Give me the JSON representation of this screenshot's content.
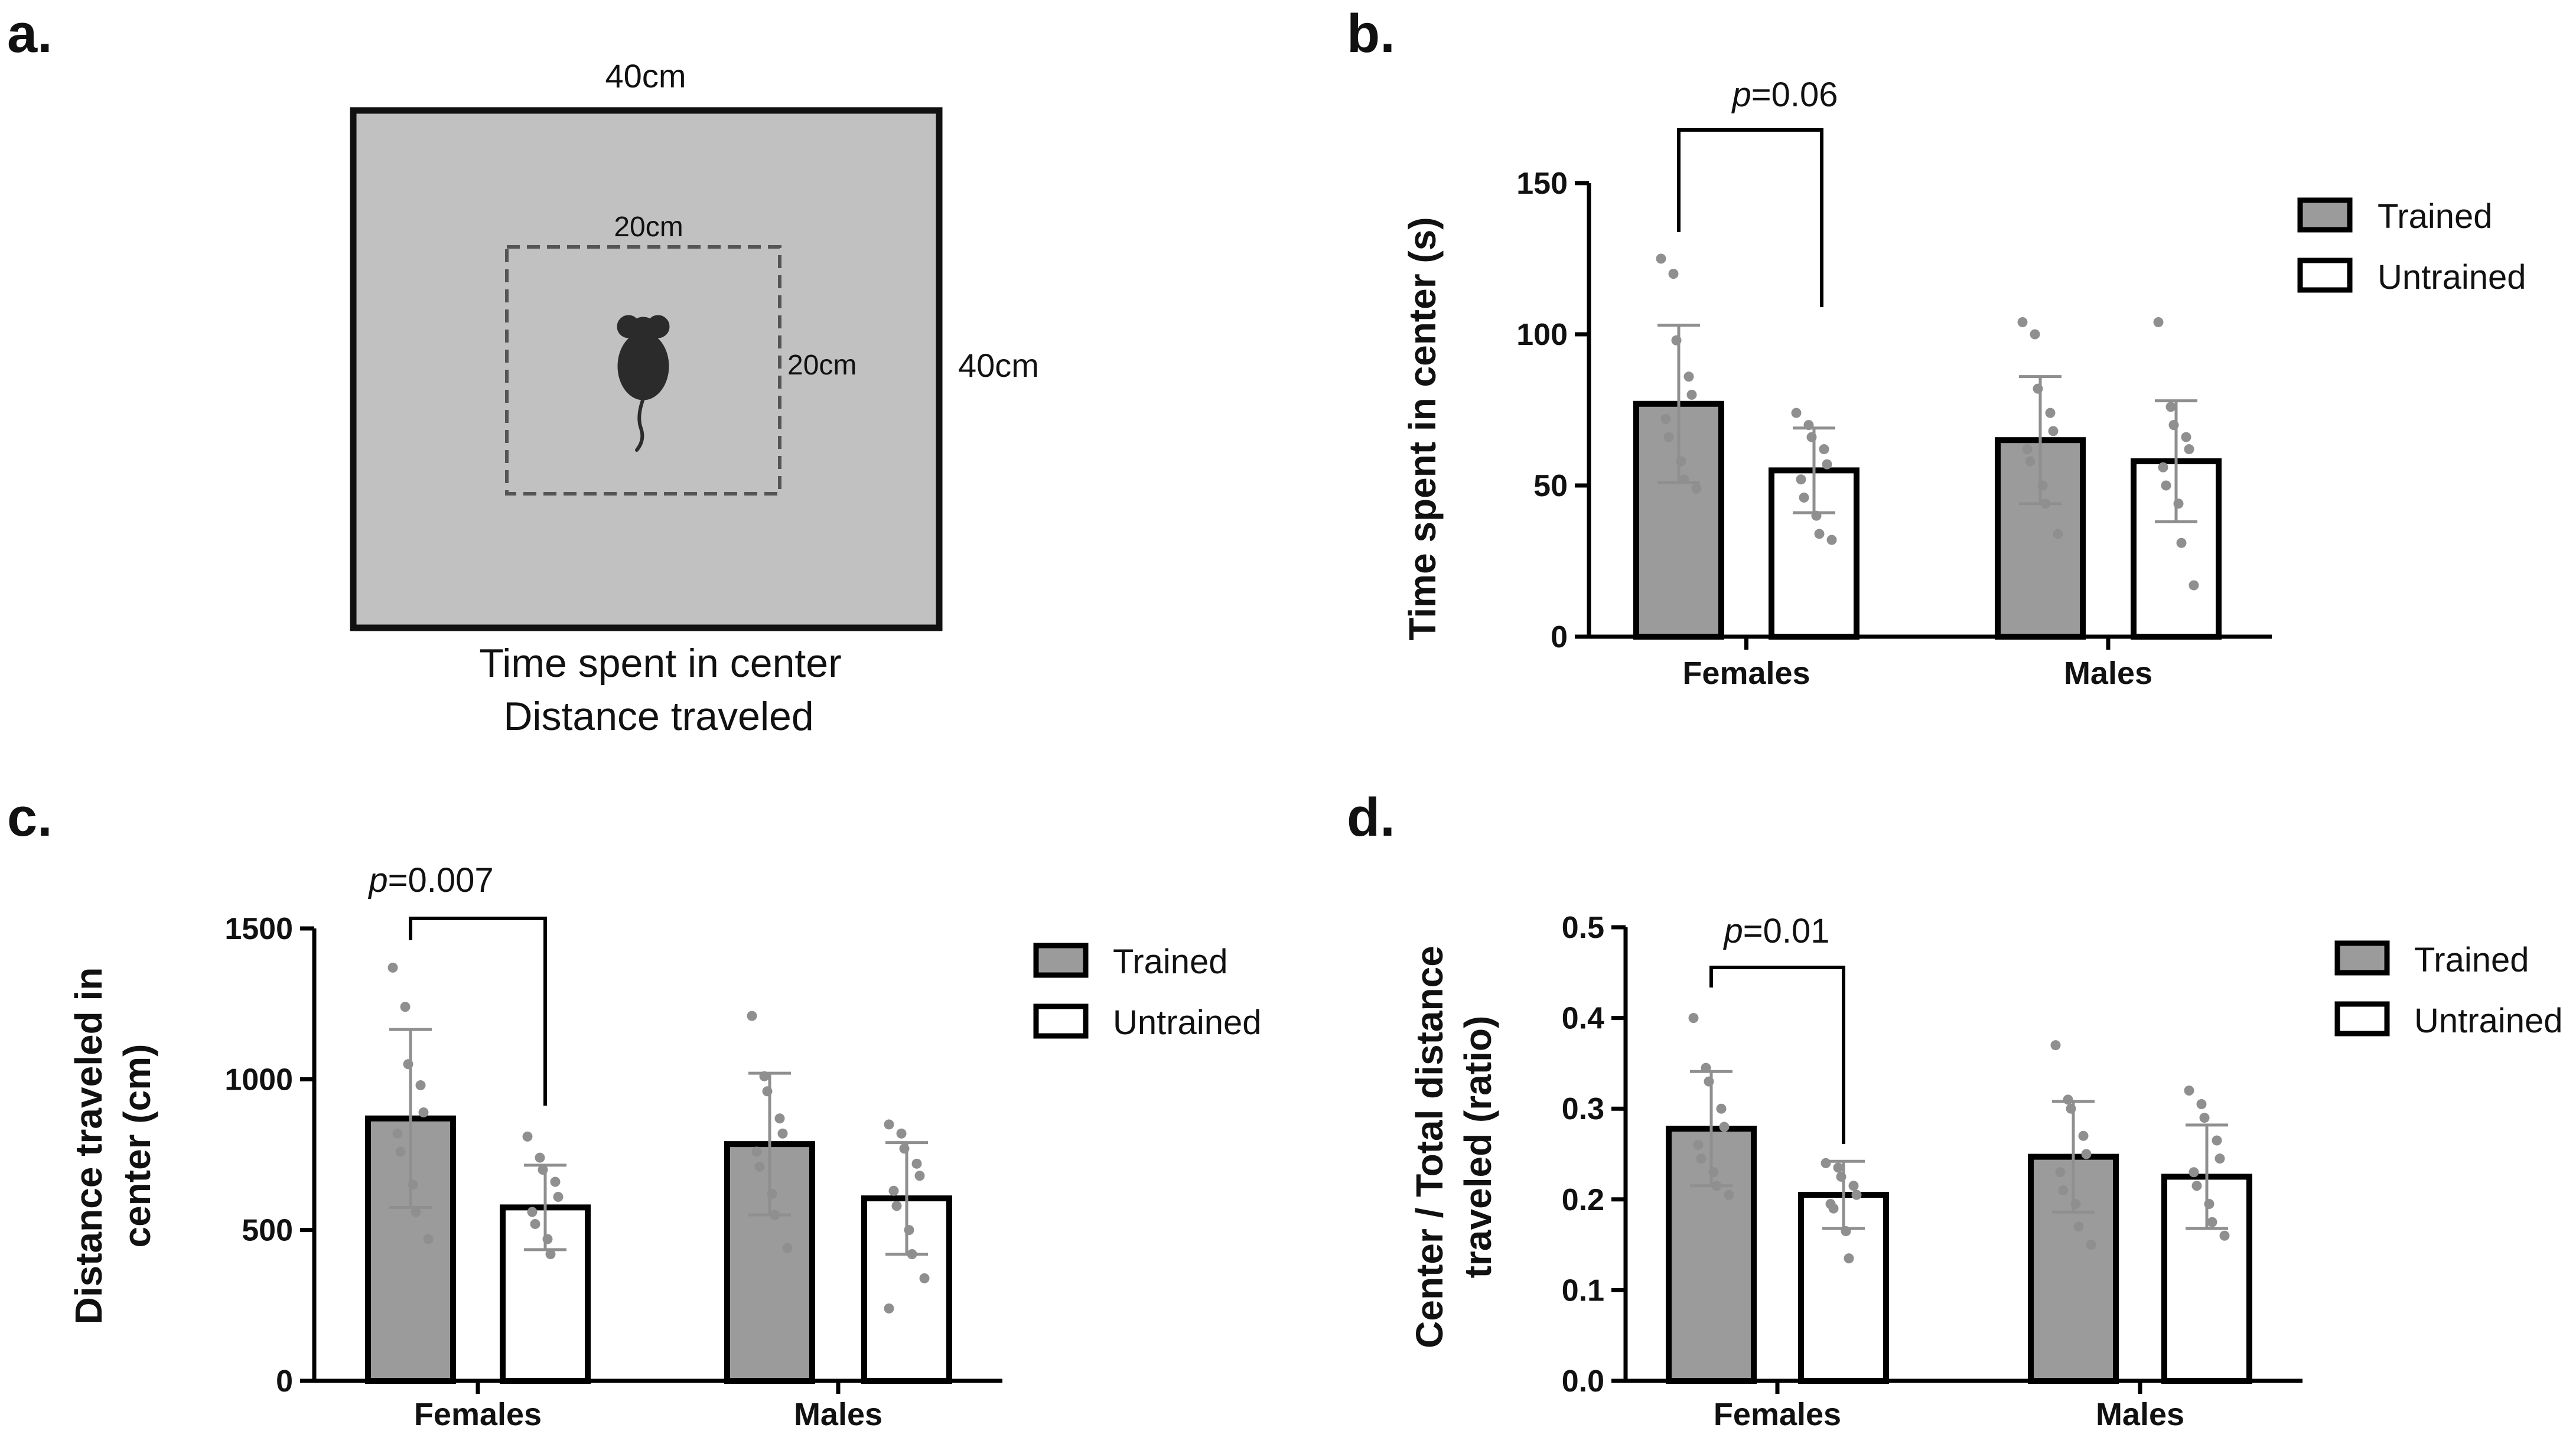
{
  "colors": {
    "trained_fill": "#9b9b9b",
    "untrained_fill": "#ffffff",
    "bar_stroke": "#000000",
    "dot": "#8f8f8f",
    "error_bar": "#8f8f8f",
    "arena_fill": "#c1c1c1",
    "arena_stroke": "#111111",
    "center_zone_stroke": "#555555",
    "mouse": "#2b2b2b"
  },
  "panel_a": {
    "letter": "a.",
    "outer_width_label": "40cm",
    "outer_height_label": "40cm",
    "inner_width_label": "20cm",
    "inner_height_label": "20cm",
    "caption_line1": "Time spent in center",
    "caption_line2": "Distance traveled",
    "icon": "mouse-icon"
  },
  "chart_data": [
    {
      "panel": "b.",
      "type": "bar",
      "title": "",
      "ylabel_lines": [
        "Time spent in center (s)"
      ],
      "xlabel": "",
      "categories": [
        "Females",
        "Males"
      ],
      "ylim": [
        0,
        150
      ],
      "yticks": [
        0,
        50,
        100,
        150
      ],
      "legend": [
        "Trained",
        "Untrained"
      ],
      "legend_position": "top-right",
      "series": [
        {
          "name": "Trained",
          "values": [
            77,
            65
          ],
          "sd": [
            26,
            21
          ],
          "points": [
            [
              125,
              120,
              98,
              86,
              80,
              72,
              66,
              58,
              52,
              49
            ],
            [
              104,
              100,
              82,
              74,
              68,
              62,
              58,
              50,
              44,
              34
            ]
          ]
        },
        {
          "name": "Untrained",
          "values": [
            55,
            58
          ],
          "sd": [
            14,
            20
          ],
          "points": [
            [
              74,
              70,
              66,
              62,
              57,
              52,
              46,
              40,
              34,
              32
            ],
            [
              104,
              76,
              70,
              66,
              62,
              56,
              50,
              44,
              31,
              17
            ]
          ]
        }
      ],
      "annotations": [
        {
          "category": "Females",
          "p_prefix": "p",
          "p_value": "=0.06"
        }
      ]
    },
    {
      "panel": "c.",
      "type": "bar",
      "title": "",
      "ylabel_lines": [
        "Distance traveled in",
        "center (cm)"
      ],
      "xlabel": "",
      "categories": [
        "Females",
        "Males"
      ],
      "ylim": [
        0,
        1500
      ],
      "yticks": [
        0,
        500,
        1000,
        1500
      ],
      "legend": [
        "Trained",
        "Untrained"
      ],
      "legend_position": "top-right",
      "series": [
        {
          "name": "Trained",
          "values": [
            870,
            785
          ],
          "sd": [
            295,
            235
          ],
          "points": [
            [
              1370,
              1240,
              1050,
              980,
              890,
              820,
              760,
              650,
              560,
              470
            ],
            [
              1210,
              1010,
              960,
              870,
              820,
              760,
              710,
              620,
              550,
              440
            ]
          ]
        },
        {
          "name": "Untrained",
          "values": [
            575,
            605
          ],
          "sd": [
            140,
            185
          ],
          "points": [
            [
              810,
              740,
              700,
              660,
              610,
              560,
              520,
              470,
              420
            ],
            [
              850,
              820,
              770,
              720,
              680,
              630,
              580,
              500,
              420,
              340,
              240
            ]
          ]
        }
      ],
      "annotations": [
        {
          "category": "Females",
          "p_prefix": "p",
          "p_value": "=0.007"
        }
      ]
    },
    {
      "panel": "d.",
      "type": "bar",
      "title": "",
      "ylabel_lines": [
        "Center / Total distance",
        "traveled (ratio)"
      ],
      "xlabel": "",
      "categories": [
        "Females",
        "Males"
      ],
      "ylim": [
        0,
        0.5
      ],
      "yticks": [
        0.0,
        0.1,
        0.2,
        0.3,
        0.4,
        0.5
      ],
      "legend": [
        "Trained",
        "Untrained"
      ],
      "legend_position": "top-right",
      "series": [
        {
          "name": "Trained",
          "values": [
            0.278,
            0.247
          ],
          "sd": [
            0.063,
            0.061
          ],
          "points": [
            [
              0.4,
              0.345,
              0.33,
              0.3,
              0.28,
              0.26,
              0.245,
              0.23,
              0.215,
              0.205
            ],
            [
              0.37,
              0.31,
              0.3,
              0.27,
              0.25,
              0.23,
              0.21,
              0.195,
              0.17,
              0.15
            ]
          ]
        },
        {
          "name": "Untrained",
          "values": [
            0.205,
            0.225
          ],
          "sd": [
            0.037,
            0.057
          ],
          "points": [
            [
              0.24,
              0.235,
              0.225,
              0.215,
              0.205,
              0.195,
              0.19,
              0.165,
              0.135
            ],
            [
              0.32,
              0.305,
              0.29,
              0.265,
              0.245,
              0.23,
              0.215,
              0.195,
              0.175,
              0.16
            ]
          ]
        }
      ],
      "annotations": [
        {
          "category": "Females",
          "p_prefix": "p",
          "p_value": "=0.01"
        }
      ]
    }
  ]
}
